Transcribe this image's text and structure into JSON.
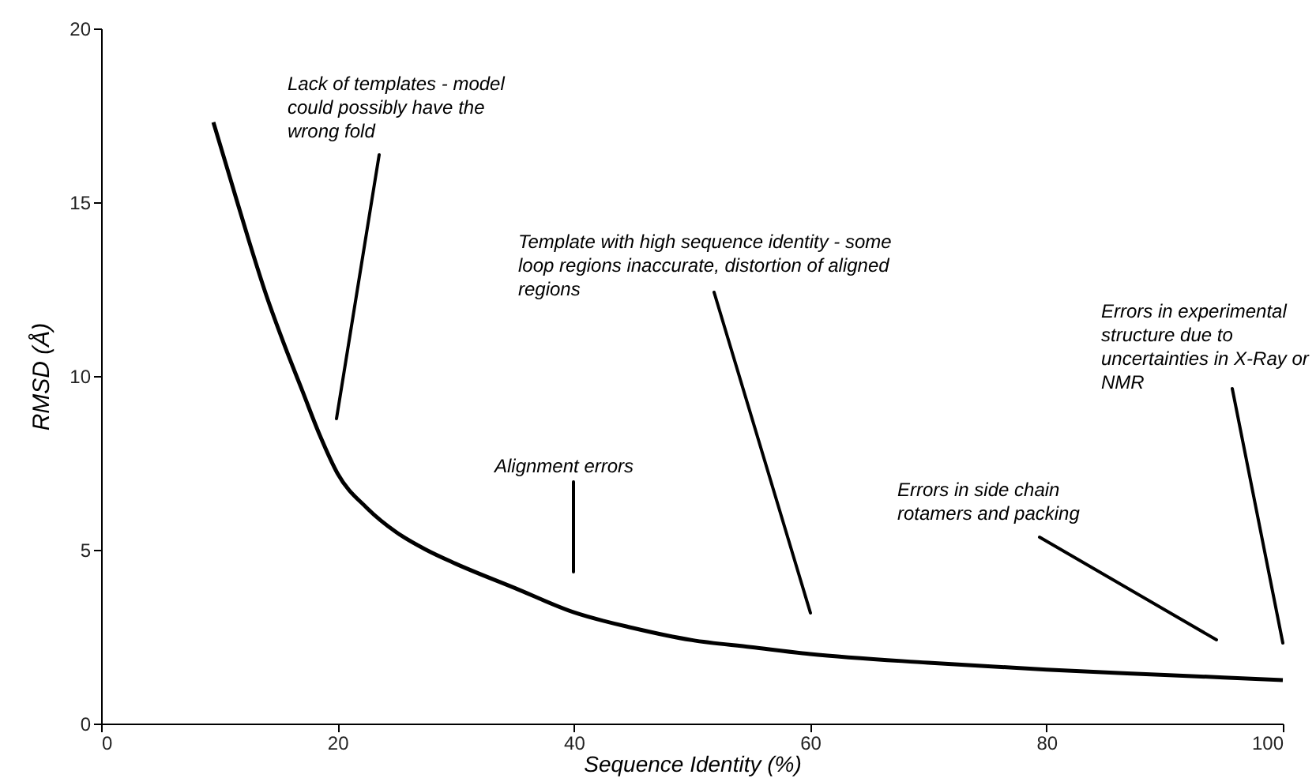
{
  "chart_data": {
    "type": "line",
    "xlabel": "Sequence Identity (%)",
    "ylabel": "RMSD (Å)",
    "x": [
      9.5,
      11,
      12.5,
      14,
      15.5,
      17,
      18.5,
      20,
      22.5,
      25,
      27.5,
      30,
      35,
      40,
      45,
      50,
      55,
      60,
      70,
      80,
      90,
      100
    ],
    "series": [
      {
        "color": "#000000",
        "values": [
          17.3,
          15.6,
          13.9,
          12.3,
          10.9,
          9.6,
          8.3,
          7.2,
          6.2,
          5.5,
          5.0,
          4.6,
          3.9,
          3.2,
          2.75,
          2.4,
          2.2,
          2.0,
          1.75,
          1.55,
          1.4,
          1.25
        ]
      }
    ],
    "xlim": [
      0,
      100
    ],
    "ylim": [
      0,
      20
    ],
    "xticks": [
      0,
      20,
      40,
      60,
      80,
      100
    ],
    "yticks": [
      0,
      5,
      10,
      15,
      20
    ],
    "grid": false,
    "marker": "none",
    "line_style": "solid",
    "annotations": [
      "Lack of templates - model could possibly have the wrong fold",
      "Alignment errors",
      "Template with high sequence identity - some loop regions inaccurate, distortion of aligned regions",
      "Errors in side chain rotamers and packing",
      "Errors in experimental structure due to uncertainties in X-Ray or NMR"
    ]
  }
}
